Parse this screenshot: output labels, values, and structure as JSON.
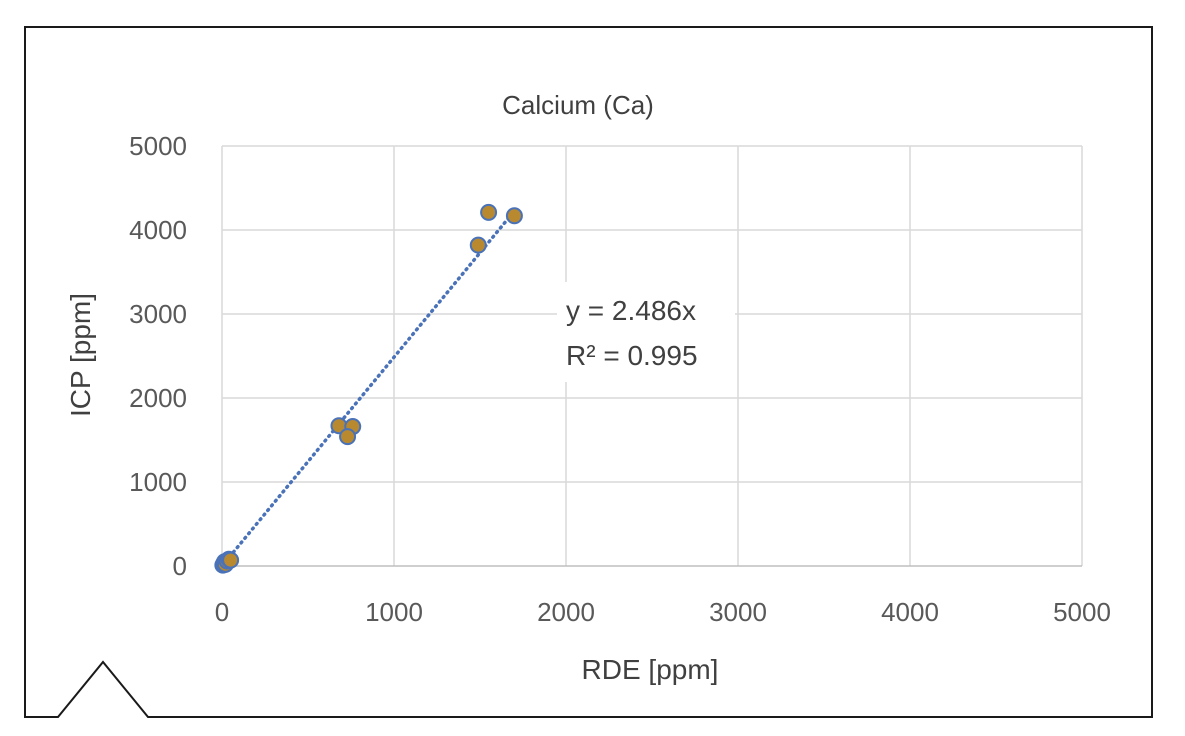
{
  "chart_data": {
    "type": "scatter",
    "title": "Calcium (Ca)",
    "xlabel": "RDE [ppm]",
    "ylabel": "ICP [ppm]",
    "xlim": [
      0,
      5000
    ],
    "ylim": [
      0,
      5000
    ],
    "x_ticks": [
      0,
      1000,
      2000,
      3000,
      4000,
      5000
    ],
    "y_ticks": [
      0,
      1000,
      2000,
      3000,
      4000,
      5000
    ],
    "x_tick_labels": [
      "0",
      "1000",
      "2000",
      "3000",
      "4000",
      "5000"
    ],
    "y_tick_labels": [
      "0",
      "1000",
      "2000",
      "3000",
      "4000",
      "5000"
    ],
    "grid": true,
    "series": [
      {
        "name": "Calcium (Ca)",
        "x": [
          5,
          10,
          15,
          20,
          30,
          40,
          50,
          680,
          760,
          730,
          1490,
          1550,
          1700
        ],
        "y": [
          10,
          30,
          50,
          20,
          60,
          80,
          70,
          1670,
          1660,
          1540,
          3820,
          4210,
          4170
        ],
        "marker_color": "#b8892e",
        "marker_edge": "#4a72b8"
      }
    ],
    "trendline": {
      "type": "linear-through-origin",
      "slope": 2.486,
      "x_range": [
        0,
        1700
      ],
      "style": "dotted",
      "color": "#4a72b8",
      "equation": "y = 2.486x",
      "r_squared": "R² = 0.995"
    }
  }
}
